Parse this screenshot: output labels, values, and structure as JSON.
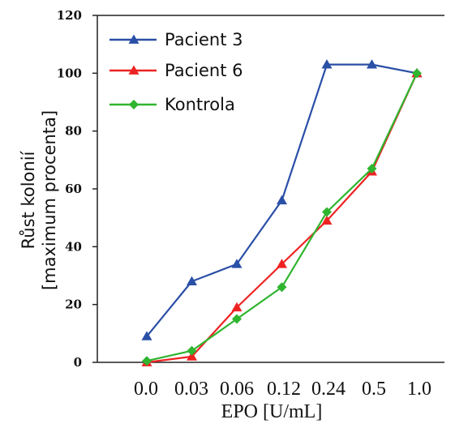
{
  "chart_data": {
    "type": "line",
    "categories": [
      "0.0",
      "0.03",
      "0.06",
      "0.12",
      "0.24",
      "0.5",
      "1.0"
    ],
    "xlabel": "EPO [U/mL]",
    "ylabel_lines": [
      "Růst kolonií",
      "[maximum procenta]"
    ],
    "ylim": [
      0,
      120
    ],
    "yticks": [
      "0",
      "20",
      "40",
      "60",
      "80",
      "100",
      "120"
    ],
    "legend_position": "top-left",
    "series": [
      {
        "name": "Pacient 3",
        "color": "#2a4fa6",
        "marker": "triangle",
        "x": [
          0,
          0.5,
          1,
          1.5,
          2,
          2.5,
          3
        ],
        "y": [
          9,
          28,
          34,
          56,
          103,
          103,
          100
        ]
      },
      {
        "name": "Pacient 6",
        "color": "#ee2222",
        "marker": "triangle",
        "x": [
          0,
          0.5,
          1,
          1.5,
          2,
          2.5,
          3
        ],
        "y": [
          0,
          2,
          19,
          34,
          49,
          66,
          100
        ]
      },
      {
        "name": "Kontrola",
        "color": "#2fb52f",
        "marker": "diamond",
        "x": [
          0,
          0.5,
          1,
          1.5,
          2,
          2.5,
          3
        ],
        "y": [
          0.5,
          4,
          15,
          26,
          52,
          67,
          100
        ]
      }
    ]
  }
}
